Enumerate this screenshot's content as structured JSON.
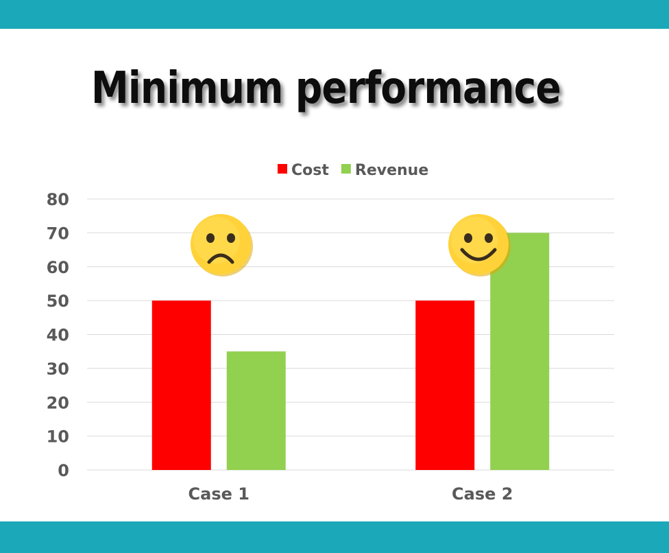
{
  "page": {
    "title": "Minimum performance",
    "band_color": "#1BA8B9"
  },
  "chart_data": {
    "type": "bar",
    "categories": [
      "Case 1",
      "Case 2"
    ],
    "series": [
      {
        "name": "Cost",
        "values": [
          50,
          50
        ],
        "color": "#FF0000"
      },
      {
        "name": "Revenue",
        "values": [
          35,
          70
        ],
        "color": "#92D050"
      }
    ],
    "ylim": [
      0,
      80
    ],
    "yticks": [
      0,
      10,
      20,
      30,
      40,
      50,
      60,
      70,
      80
    ],
    "grid": true,
    "legend_position": "top-center",
    "annotations": [
      {
        "category": "Case 1",
        "icon": "sad-face-icon"
      },
      {
        "category": "Case 2",
        "icon": "smiley-face-icon"
      }
    ]
  }
}
